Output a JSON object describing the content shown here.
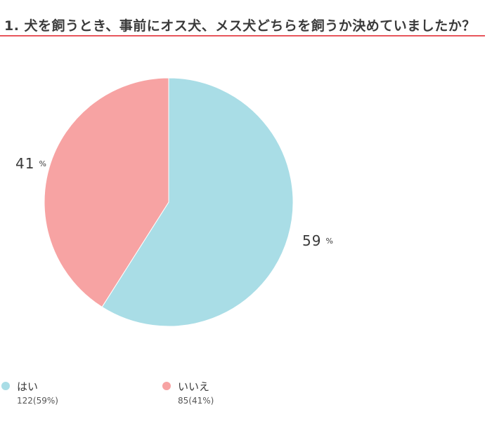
{
  "title": "1. 犬を飼うとき、事前にオス犬、メス犬どちらを飼うか決めていましたか？",
  "accent_color": "#e8555c",
  "chart_data": {
    "type": "pie",
    "categories": [
      "はい",
      "いいえ"
    ],
    "values": [
      59,
      41
    ],
    "counts": [
      122,
      85
    ],
    "colors": [
      "#a9dde6",
      "#f7a3a3"
    ],
    "start_angle_deg": 0,
    "direction": "clockwise",
    "labels": [
      {
        "value": "59",
        "unit": "%"
      },
      {
        "value": "41",
        "unit": "%"
      }
    ],
    "legend": [
      {
        "name": "はい",
        "detail": "122(59%)",
        "color": "#a9dde6"
      },
      {
        "name": "いいえ",
        "detail": "85(41%)",
        "color": "#f7a3a3"
      }
    ],
    "legend_position": "bottom-left"
  }
}
